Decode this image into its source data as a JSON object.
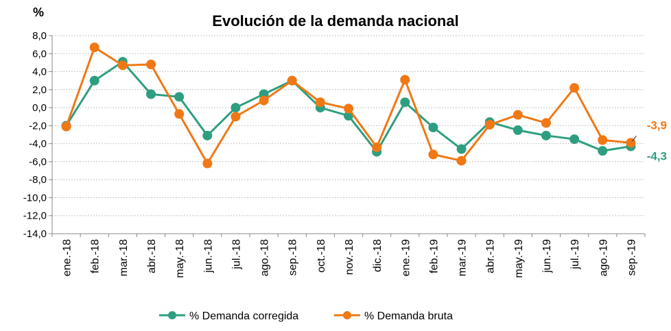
{
  "chart_data": {
    "type": "line",
    "title": "Evolución de la demanda nacional",
    "unit_label": "%",
    "categories": [
      "ene.-18",
      "feb.-18",
      "mar.-18",
      "abr.-18",
      "may.-18",
      "jun.-18",
      "jul.-18",
      "ago.-18",
      "sep.-18",
      "oct.-18",
      "nov.-18",
      "dic.-18",
      "ene.-19",
      "feb.-19",
      "mar.-19",
      "abr.-19",
      "may.-19",
      "jun.-19",
      "jul.-19",
      "ago.-19",
      "sep.-19"
    ],
    "ylim": [
      -14,
      8
    ],
    "yticks": [
      8,
      6,
      4,
      2,
      0,
      -2,
      -4,
      -6,
      -8,
      -10,
      -12,
      -14
    ],
    "ytick_labels": [
      "8,0",
      "6,0",
      "4,0",
      "2,0",
      "0,0",
      "-2,0",
      "-4,0",
      "-6,0",
      "-8,0",
      "-10,0",
      "-12,0",
      "-14,0"
    ],
    "grid": true,
    "legend_position": "bottom",
    "series": [
      {
        "name": "% Demanda corregida",
        "color": "#2e9e80",
        "values": [
          -2.0,
          3.0,
          5.1,
          1.5,
          1.2,
          -3.1,
          0.0,
          1.5,
          3.0,
          0.0,
          -0.9,
          -4.9,
          0.6,
          -2.2,
          -4.6,
          -1.6,
          -2.5,
          -3.1,
          -3.5,
          -4.8,
          -4.3
        ],
        "end_label": "-4,3"
      },
      {
        "name": "% Demanda bruta",
        "color": "#f07814",
        "values": [
          -2.1,
          6.7,
          4.7,
          4.8,
          -0.7,
          -6.2,
          -1.0,
          0.8,
          3.0,
          0.6,
          -0.1,
          -4.4,
          3.1,
          -5.2,
          -5.9,
          -1.9,
          -0.8,
          -1.7,
          2.2,
          -3.6,
          -3.9
        ],
        "end_label": "-3,9"
      }
    ]
  }
}
